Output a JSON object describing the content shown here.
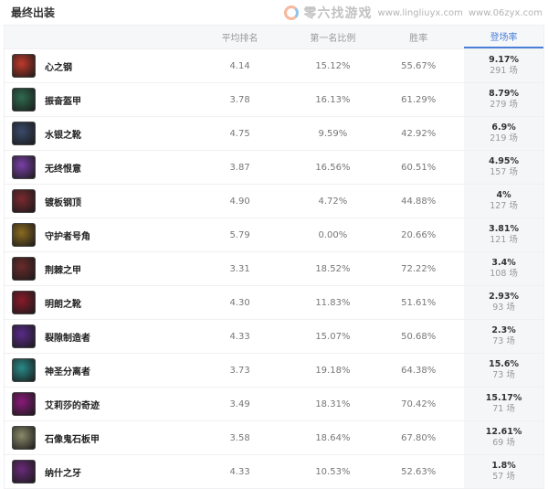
{
  "title": "最终出装",
  "columns": [
    "平均排名",
    "第一名比例",
    "胜率",
    "登场率"
  ],
  "items": [
    {
      "name": "心之钢",
      "avg_rank": "4.14",
      "top1": "15.12%",
      "winrate": "55.67%",
      "pick": "9.17%",
      "games": "291 场",
      "color": "#c0392b"
    },
    {
      "name": "振奋盔甲",
      "avg_rank": "3.78",
      "top1": "16.13%",
      "winrate": "61.29%",
      "pick": "8.79%",
      "games": "279 场",
      "color": "#2f6b4f"
    },
    {
      "name": "水银之靴",
      "avg_rank": "4.75",
      "top1": "9.59%",
      "winrate": "42.92%",
      "pick": "6.9%",
      "games": "219 场",
      "color": "#3a4a6a"
    },
    {
      "name": "无终恨意",
      "avg_rank": "3.87",
      "top1": "16.56%",
      "winrate": "60.51%",
      "pick": "4.95%",
      "games": "157 场",
      "color": "#7a3fa8"
    },
    {
      "name": "镀板钢顶",
      "avg_rank": "4.90",
      "top1": "4.72%",
      "winrate": "44.88%",
      "pick": "4%",
      "games": "127 场",
      "color": "#7a2a30"
    },
    {
      "name": "守护者号角",
      "avg_rank": "5.79",
      "top1": "0.00%",
      "winrate": "20.66%",
      "pick": "3.81%",
      "games": "121 场",
      "color": "#8a6a20"
    },
    {
      "name": "荆棘之甲",
      "avg_rank": "3.31",
      "top1": "18.52%",
      "winrate": "72.22%",
      "pick": "3.4%",
      "games": "108 场",
      "color": "#6a2a2a"
    },
    {
      "name": "明朗之靴",
      "avg_rank": "4.30",
      "top1": "11.83%",
      "winrate": "51.61%",
      "pick": "2.93%",
      "games": "93 场",
      "color": "#8a1a2a"
    },
    {
      "name": "裂隙制造者",
      "avg_rank": "4.33",
      "top1": "15.07%",
      "winrate": "50.68%",
      "pick": "2.3%",
      "games": "73 场",
      "color": "#5a2a8a"
    },
    {
      "name": "神圣分离者",
      "avg_rank": "3.73",
      "top1": "19.18%",
      "winrate": "64.38%",
      "pick": "15.6%",
      "games": "73 场",
      "color": "#2a8a8a"
    },
    {
      "name": "艾莉莎的奇迹",
      "avg_rank": "3.49",
      "top1": "18.31%",
      "winrate": "70.42%",
      "pick": "15.17%",
      "games": "71 场",
      "color": "#8a1a7a"
    },
    {
      "name": "石像鬼石板甲",
      "avg_rank": "3.58",
      "top1": "18.64%",
      "winrate": "67.80%",
      "pick": "12.61%",
      "games": "69 场",
      "color": "#8a8a6a"
    },
    {
      "name": "纳什之牙",
      "avg_rank": "4.33",
      "top1": "10.53%",
      "winrate": "52.63%",
      "pick": "1.8%",
      "games": "57 场",
      "color": "#6a2a7a"
    }
  ],
  "watermark": {
    "text": "零六找游戏",
    "url1": "www.lingliuyx.com",
    "url2": "www.06zyx.com"
  }
}
